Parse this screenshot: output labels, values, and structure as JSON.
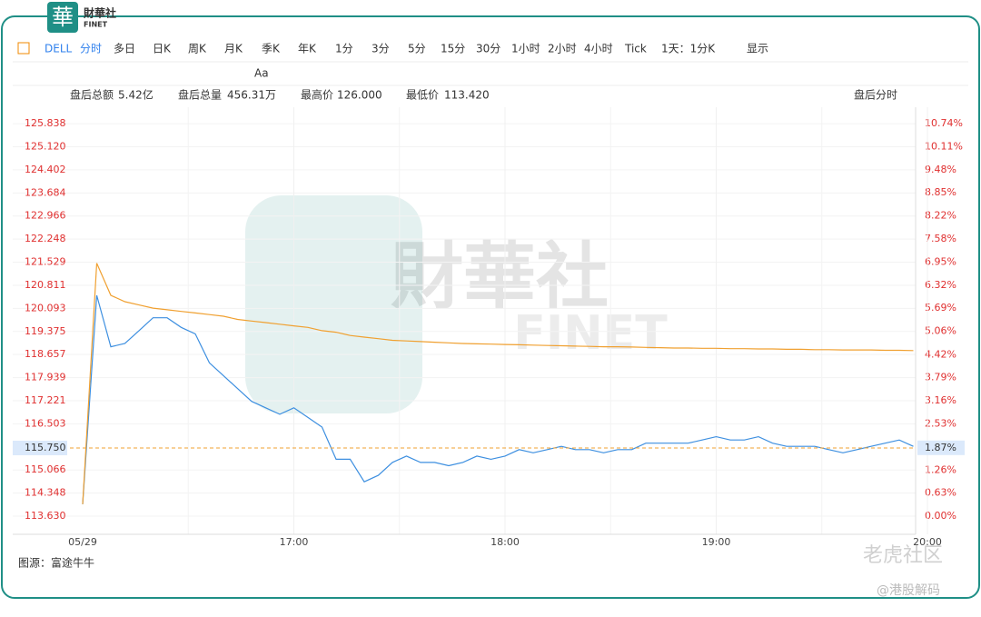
{
  "header": {
    "logo_char": "華",
    "logo_name": "財華社",
    "logo_sub": "FINET"
  },
  "toolbar": {
    "symbol": "DELL",
    "tabs": [
      "分时",
      "多日",
      "日K",
      "周K",
      "月K",
      "季K",
      "年K",
      "1分",
      "3分",
      "5分",
      "15分",
      "30分",
      "1小时",
      "2小时",
      "4小时",
      "Tick"
    ],
    "period": "1天：1分K",
    "display": "显示",
    "font_tool": "Aa"
  },
  "stats": [
    {
      "label": "盘后总额",
      "value": "5.42亿"
    },
    {
      "label": "盘后总量",
      "value": "456.31万"
    },
    {
      "label": "最高价",
      "value": "126.000"
    },
    {
      "label": "最低价",
      "value": "113.420"
    }
  ],
  "mode": "盘后分时",
  "chart_data": {
    "type": "line",
    "categories": [
      "05/29",
      null,
      null,
      null,
      null,
      null,
      null,
      null,
      null,
      null,
      null,
      null,
      null,
      null,
      null,
      "17:00",
      null,
      null,
      null,
      null,
      null,
      null,
      null,
      null,
      null,
      null,
      null,
      null,
      null,
      null,
      "18:00",
      null,
      null,
      null,
      null,
      null,
      null,
      null,
      null,
      null,
      null,
      null,
      null,
      null,
      null,
      "19:00",
      null,
      null,
      null,
      null,
      null,
      null,
      null,
      null,
      null,
      null,
      null,
      null,
      null,
      null,
      "20:00"
    ],
    "series": [
      {
        "color": "#3d8fe0",
        "values": [
          114.0,
          120.5,
          118.9,
          119.0,
          119.4,
          119.8,
          119.8,
          119.5,
          119.3,
          118.4,
          118.0,
          117.6,
          117.2,
          117.0,
          116.8,
          117.0,
          116.7,
          116.4,
          115.4,
          115.4,
          114.7,
          114.9,
          115.3,
          115.5,
          115.3,
          115.3,
          115.2,
          115.3,
          115.5,
          115.4,
          115.5,
          115.7,
          115.6,
          115.7,
          115.8,
          115.7,
          115.7,
          115.6,
          115.7,
          115.7,
          115.9,
          115.9,
          115.9,
          115.9,
          116.0,
          116.1,
          116.0,
          116.0,
          116.1,
          115.9,
          115.8,
          115.8,
          115.8,
          115.7,
          115.6,
          115.7,
          115.8,
          115.9,
          116.0,
          115.8,
          null
        ]
      },
      {
        "color": "#f0a030",
        "values": [
          114.0,
          121.5,
          120.5,
          120.3,
          120.2,
          120.1,
          120.05,
          120.0,
          119.95,
          119.9,
          119.85,
          119.75,
          119.7,
          119.65,
          119.6,
          119.55,
          119.5,
          119.4,
          119.35,
          119.25,
          119.2,
          119.15,
          119.1,
          119.08,
          119.06,
          119.04,
          119.02,
          119.0,
          118.99,
          118.98,
          118.97,
          118.96,
          118.95,
          118.94,
          118.93,
          118.92,
          118.91,
          118.9,
          118.9,
          118.89,
          118.88,
          118.87,
          118.86,
          118.86,
          118.85,
          118.85,
          118.84,
          118.84,
          118.83,
          118.83,
          118.82,
          118.82,
          118.81,
          118.81,
          118.8,
          118.8,
          118.8,
          118.79,
          118.79,
          118.78,
          null
        ]
      }
    ],
    "ylim": [
      113.065,
      126.35
    ],
    "yticks": [
      125.838,
      {
        "value": 125.12,
        "label": "125.120"
      },
      124.402,
      123.684,
      122.966,
      122.248,
      121.529,
      120.811,
      120.093,
      119.375,
      118.657,
      117.939,
      117.221,
      116.503,
      115.066,
      114.348,
      {
        "value": 113.63,
        "label": "113.630"
      }
    ],
    "y2lim": [
      -0.497,
      11.19
    ],
    "y2ticks": [
      {
        "value": 10.74,
        "label": "10.74%"
      },
      {
        "value": 10.11,
        "label": "10.11%"
      },
      {
        "value": 9.48,
        "label": "9.48%"
      },
      {
        "value": 8.85,
        "label": "8.85%"
      },
      {
        "value": 8.22,
        "label": "8.22%"
      },
      {
        "value": 7.58,
        "label": "7.58%"
      },
      {
        "value": 6.95,
        "label": "6.95%"
      },
      {
        "value": 6.32,
        "label": "6.32%"
      },
      {
        "value": 5.69,
        "label": "5.69%"
      },
      {
        "value": 5.06,
        "label": "5.06%"
      },
      {
        "value": 4.42,
        "label": "4.42%"
      },
      {
        "value": 3.79,
        "label": "3.79%"
      },
      {
        "value": 3.16,
        "label": "3.16%"
      },
      {
        "value": 2.53,
        "label": "2.53%"
      },
      {
        "value": 1.26,
        "label": "1.26%"
      },
      {
        "value": 0.63,
        "label": "0.63%"
      },
      {
        "value": 0,
        "label": "0.00%"
      }
    ],
    "last_price": {
      "value": 115.75,
      "label": "115.750"
    },
    "last_price_pct": {
      "value": 1.87,
      "label": "1.87%"
    },
    "grid": true
  },
  "source": "图源：富途牛牛",
  "watermark": {
    "big": "財華社",
    "big_sub": "FINET",
    "tiger": "老虎社区",
    "handle": "@港股解码"
  }
}
